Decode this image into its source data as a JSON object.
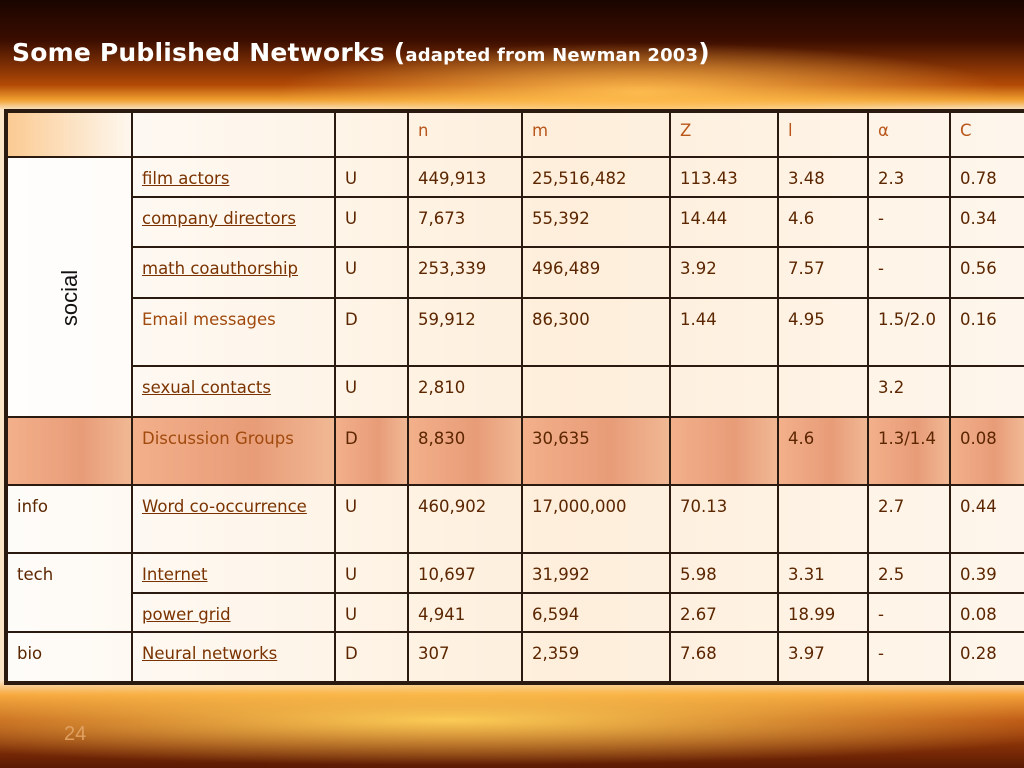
{
  "slide": {
    "title_main": "Some Published Networks (",
    "title_sub": "adapted from Newman 2003",
    "title_close": ")",
    "page_number": "24"
  },
  "table": {
    "headers": [
      "",
      "",
      "",
      "n",
      "m",
      "Z",
      "l",
      "α",
      "C"
    ],
    "group_labels": {
      "social": "social",
      "info": "info",
      "tech": "tech",
      "bio": "bio"
    },
    "rows": [
      {
        "name": "film actors",
        "type": "U",
        "n": "449,913",
        "m": "25,516,482",
        "z": "113.43",
        "l": "3.48",
        "alpha": "2.3",
        "c": "0.78"
      },
      {
        "name": "company directors",
        "type": "U",
        "n": "7,673",
        "m": "55,392",
        "z": "14.44",
        "l": "4.6",
        "alpha": "-",
        "c": "0.34"
      },
      {
        "name": "math coauthorship",
        "type": "U",
        "n": "253,339",
        "m": "496,489",
        "z": "3.92",
        "l": "7.57",
        "alpha": "-",
        "c": "0.56"
      },
      {
        "name": "Email messages",
        "type": "D",
        "n": "59,912",
        "m": "86,300",
        "z": "1.44",
        "l": "4.95",
        "alpha": "1.5/2.0",
        "c": "0.16"
      },
      {
        "name": "sexual contacts",
        "type": "U",
        "n": "2,810",
        "m": "",
        "z": "",
        "l": "",
        "alpha": "3.2",
        "c": ""
      },
      {
        "name": "Discussion Groups",
        "type": "D",
        "n": "8,830",
        "m": "30,635",
        "z": "",
        "l": "4.6",
        "alpha": "1.3/1.4",
        "c": "0.08"
      },
      {
        "name": "Word co-occurrence",
        "type": "U",
        "n": "460,902",
        "m": "17,000,000",
        "z": "70.13",
        "l": "",
        "alpha": "2.7",
        "c": "0.44"
      },
      {
        "name": "Internet",
        "type": "U",
        "n": "10,697",
        "m": "31,992",
        "z": "5.98",
        "l": "3.31",
        "alpha": "2.5",
        "c": "0.39"
      },
      {
        "name": "power grid",
        "type": "U",
        "n": "4,941",
        "m": "6,594",
        "z": "2.67",
        "l": "18.99",
        "alpha": "-",
        "c": "0.08"
      },
      {
        "name": "Neural networks",
        "type": "D",
        "n": "307",
        "m": "2,359",
        "z": "7.68",
        "l": "3.97",
        "alpha": "-",
        "c": "0.28"
      }
    ]
  }
}
